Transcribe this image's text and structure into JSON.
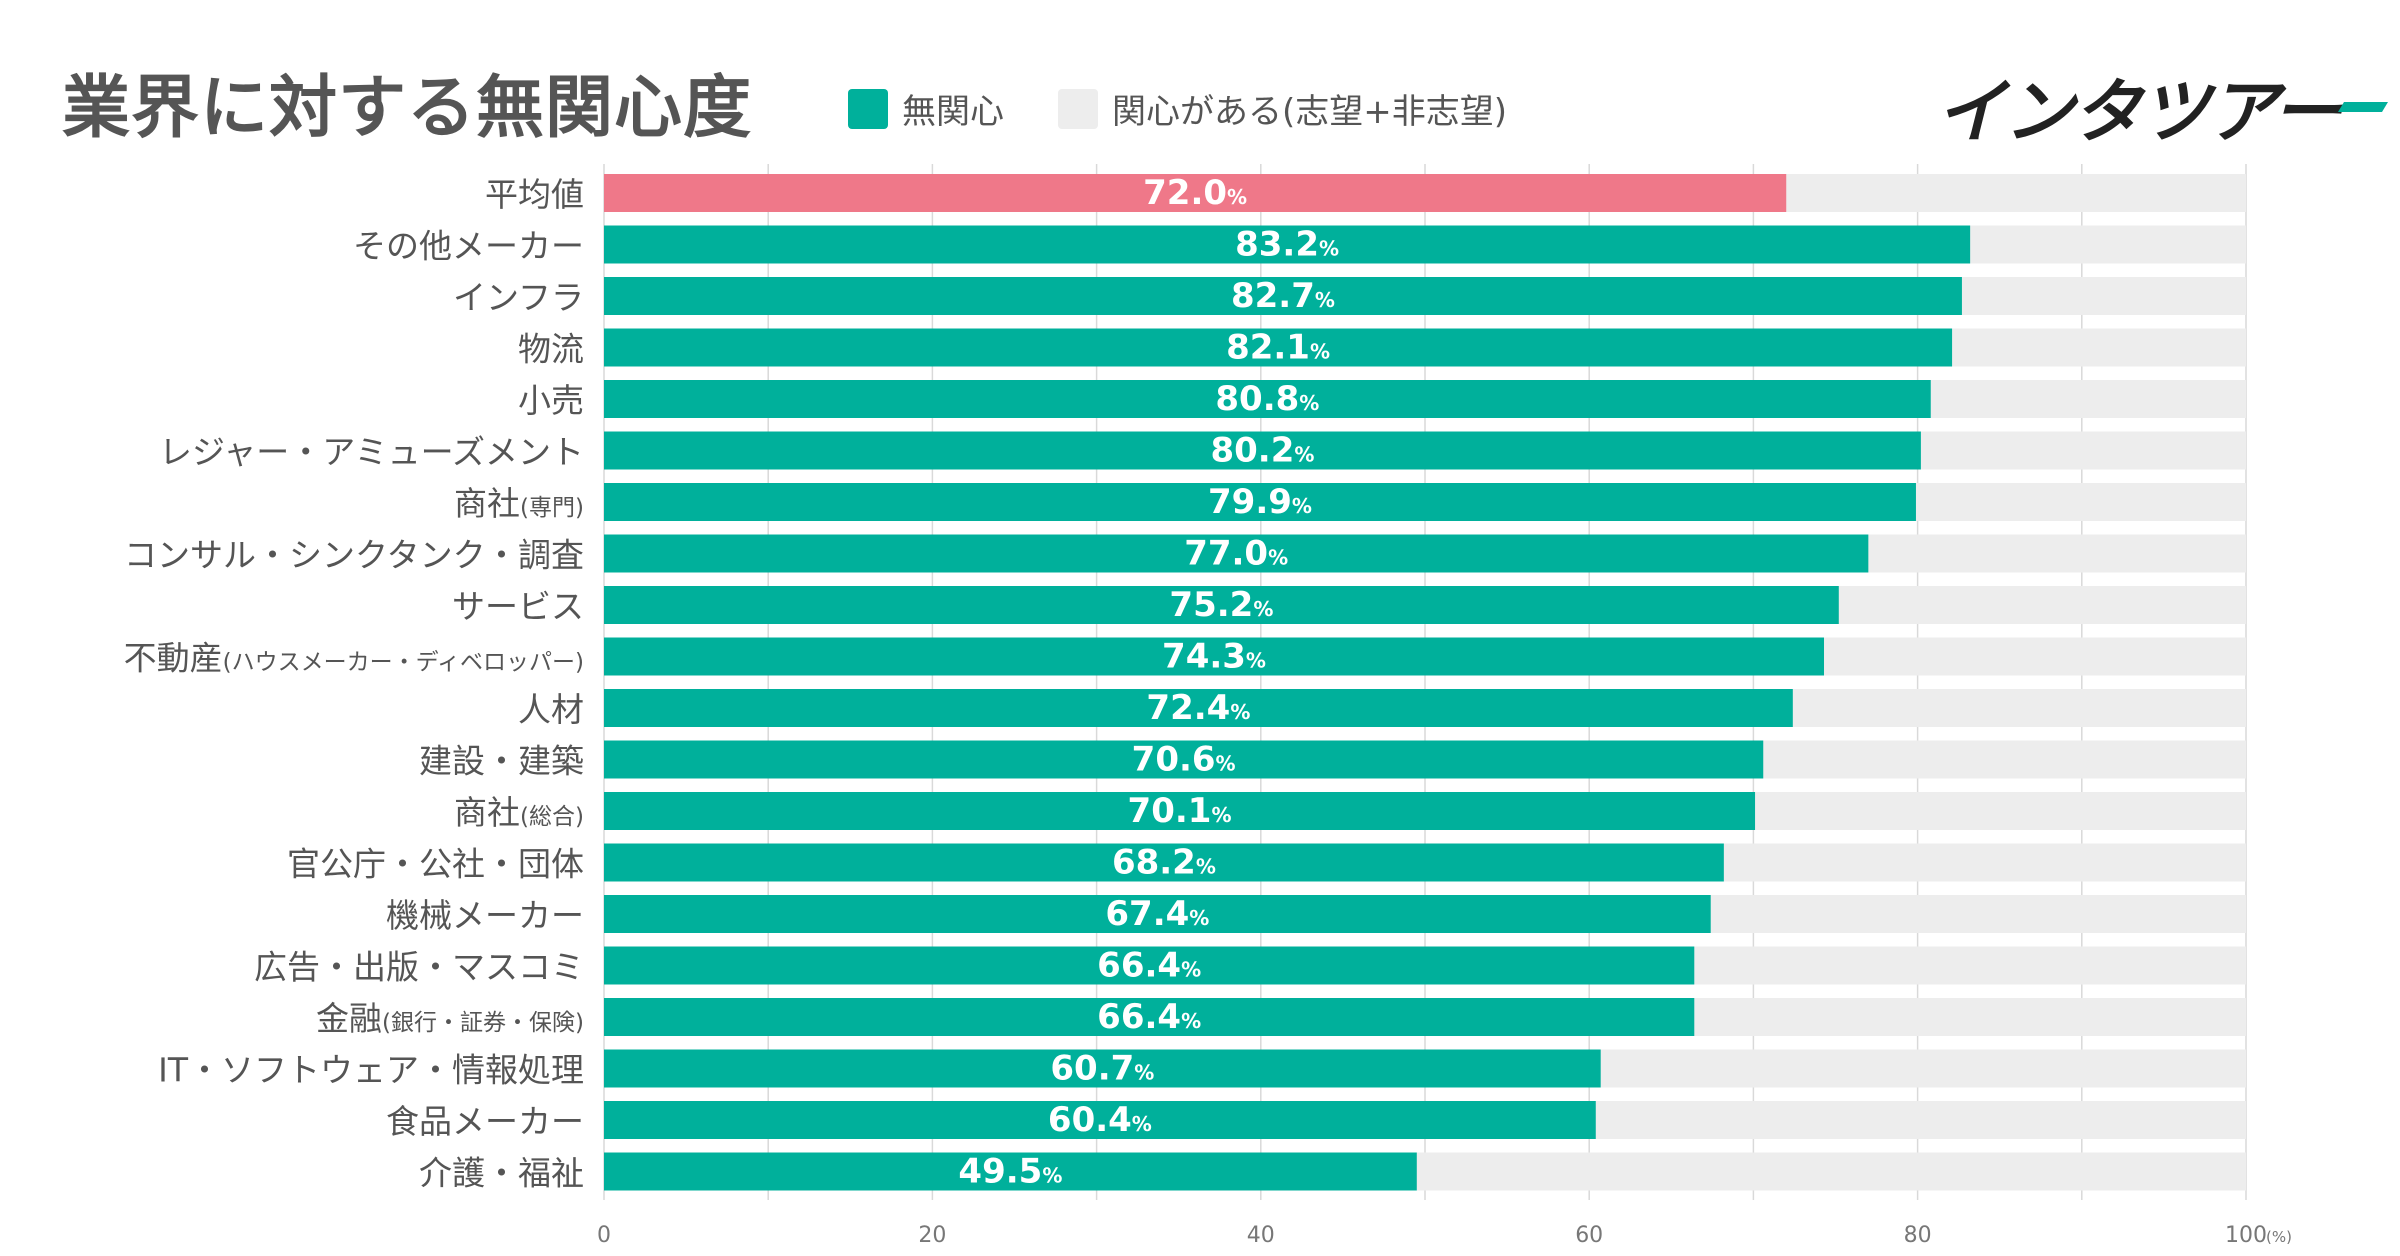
{
  "header": {
    "title": "業界に対する無関心度",
    "brand": "インタツアー"
  },
  "colors": {
    "primary": "#00B09B",
    "average": "#EF7889",
    "remainder": "#EDEDED",
    "grid": "#D9D9D9",
    "label": "#555555"
  },
  "chart_data": {
    "type": "bar",
    "orientation": "horizontal",
    "stacked": true,
    "title": "業界に対する無関心度",
    "legend": [
      {
        "name": "無関心",
        "color": "#00B09B"
      },
      {
        "name": "関心がある(志望+非志望)",
        "color": "#EDEDED"
      }
    ],
    "legend_position": "top",
    "categories": [
      "平均値",
      "その他メーカー",
      "インフラ",
      "物流",
      "小売",
      "レジャー・アミューズメント",
      "商社(専門)",
      "コンサル・シンクタンク・調査",
      "サービス",
      "不動産(ハウスメーカー・ディベロッパー)",
      "人材",
      "建設・建築",
      "商社(総合)",
      "官公庁・公社・団体",
      "機械メーカー",
      "広告・出版・マスコミ",
      "金融(銀行・証券・保険)",
      "IT・ソフトウェア・情報処理",
      "食品メーカー",
      "介護・福祉"
    ],
    "category_main": [
      "平均値",
      "その他メーカー",
      "インフラ",
      "物流",
      "小売",
      "レジャー・アミューズメント",
      "商社",
      "コンサル・シンクタンク・調査",
      "サービス",
      "不動産",
      "人材",
      "建設・建築",
      "商社",
      "官公庁・公社・団体",
      "機械メーカー",
      "広告・出版・マスコミ",
      "金融",
      "IT・ソフトウェア・情報処理",
      "食品メーカー",
      "介護・福祉"
    ],
    "category_sub": [
      "",
      "",
      "",
      "",
      "",
      "",
      "(専門)",
      "",
      "",
      "(ハウスメーカー・ディベロッパー)",
      "",
      "",
      "(総合)",
      "",
      "",
      "",
      "(銀行・証券・保険)",
      "",
      "",
      ""
    ],
    "series": [
      {
        "name": "無関心",
        "values": [
          72.0,
          83.2,
          82.7,
          82.1,
          80.8,
          80.2,
          79.9,
          77.0,
          75.2,
          74.3,
          72.4,
          70.6,
          70.1,
          68.2,
          67.4,
          66.4,
          66.4,
          60.7,
          60.4,
          49.5
        ]
      },
      {
        "name": "関心がある(志望+非志望)",
        "values": [
          28.0,
          16.8,
          17.3,
          17.9,
          19.2,
          19.8,
          20.1,
          23.0,
          24.8,
          25.7,
          27.6,
          29.4,
          29.9,
          31.8,
          32.6,
          33.6,
          33.6,
          39.3,
          39.6,
          50.5
        ]
      }
    ],
    "value_labels": [
      "72.0",
      "83.2",
      "82.7",
      "82.1",
      "80.8",
      "80.2",
      "79.9",
      "77.0",
      "75.2",
      "74.3",
      "72.4",
      "70.6",
      "70.1",
      "68.2",
      "67.4",
      "66.4",
      "66.4",
      "60.7",
      "60.4",
      "49.5"
    ],
    "value_unit": "%",
    "highlight_index": 0,
    "xlim": [
      0,
      100
    ],
    "xticks": [
      0,
      20,
      40,
      60,
      80,
      100
    ],
    "x_unit_label": "(%)",
    "grid": true
  }
}
